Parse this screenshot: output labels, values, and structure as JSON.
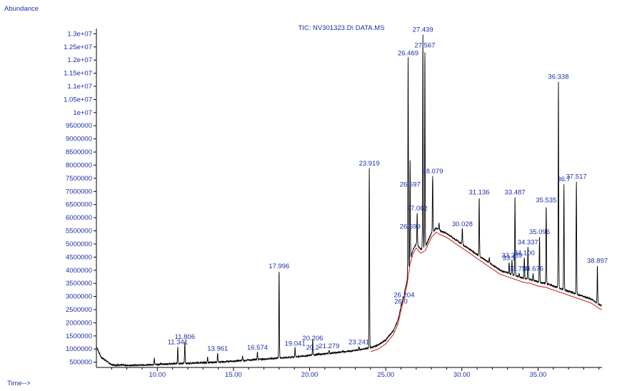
{
  "chart_data": {
    "type": "line",
    "title": "TIC: NV301323.D\\ DATA.MS",
    "ylabel": "Abundance",
    "xlabel": "Time-->",
    "xlim": [
      6.0,
      39.2
    ],
    "ylim": [
      300000,
      13200000
    ],
    "xticks": [
      10,
      15,
      20,
      25,
      30,
      35
    ],
    "xtick_labels": [
      "10.00",
      "15.00",
      "20.00",
      "25.00",
      "30.00",
      "35.00"
    ],
    "yticks": [
      500000,
      1000000,
      1500000,
      2000000,
      2500000,
      3000000,
      3500000,
      4000000,
      4500000,
      5000000,
      5500000,
      6000000,
      6500000,
      7000000,
      7500000,
      8000000,
      8500000,
      9000000,
      9500000,
      10000000,
      10500000,
      11000000,
      11500000,
      12000000,
      12500000,
      13000000
    ],
    "ytick_labels": [
      "500000",
      "1000000",
      "1500000",
      "2000000",
      "2500000",
      "3000000",
      "3500000",
      "4000000",
      "4500000",
      "5000000",
      "5500000",
      "6000000",
      "6500000",
      "7000000",
      "7500000",
      "8000000",
      "8500000",
      "9000000",
      "9500000",
      "1e+07",
      "1.05e+07",
      "1.1e+07",
      "1.15e+07",
      "1.2e+07",
      "1.25e+07",
      "1.3e+07"
    ],
    "baseline": [
      [
        6.0,
        1100000
      ],
      [
        6.3,
        700000
      ],
      [
        7.0,
        400000
      ],
      [
        8.0,
        380000
      ],
      [
        9.0,
        390000
      ],
      [
        10.0,
        420000
      ],
      [
        11.0,
        440000
      ],
      [
        12.0,
        460000
      ],
      [
        13.0,
        480000
      ],
      [
        14.0,
        500000
      ],
      [
        15.0,
        540000
      ],
      [
        16.0,
        580000
      ],
      [
        17.0,
        620000
      ],
      [
        18.0,
        660000
      ],
      [
        19.0,
        700000
      ],
      [
        20.0,
        760000
      ],
      [
        21.0,
        820000
      ],
      [
        22.0,
        880000
      ],
      [
        23.0,
        950000
      ],
      [
        24.0,
        1050000
      ],
      [
        24.5,
        1150000
      ],
      [
        25.0,
        1350000
      ],
      [
        25.5,
        1700000
      ],
      [
        25.8,
        2100000
      ],
      [
        26.0,
        2600000
      ],
      [
        26.2,
        3100000
      ],
      [
        26.4,
        3600000
      ],
      [
        26.6,
        4400000
      ],
      [
        26.8,
        4800000
      ],
      [
        27.0,
        5000000
      ],
      [
        27.3,
        4800000
      ],
      [
        27.6,
        4900000
      ],
      [
        28.0,
        5400000
      ],
      [
        28.3,
        5600000
      ],
      [
        28.6,
        5500000
      ],
      [
        29.0,
        5400000
      ],
      [
        29.5,
        5200000
      ],
      [
        30.0,
        5000000
      ],
      [
        30.5,
        4800000
      ],
      [
        31.0,
        4600000
      ],
      [
        31.5,
        4400000
      ],
      [
        32.0,
        4200000
      ],
      [
        32.5,
        4000000
      ],
      [
        33.0,
        3900000
      ],
      [
        33.5,
        3800000
      ],
      [
        34.0,
        3700000
      ],
      [
        34.5,
        3650000
      ],
      [
        35.0,
        3550000
      ],
      [
        35.5,
        3500000
      ],
      [
        36.0,
        3400000
      ],
      [
        36.5,
        3300000
      ],
      [
        37.0,
        3200000
      ],
      [
        37.5,
        3100000
      ],
      [
        38.0,
        3000000
      ],
      [
        38.5,
        2900000
      ],
      [
        39.0,
        2700000
      ],
      [
        39.2,
        2650000
      ]
    ],
    "peaks": [
      {
        "rt": 9.8,
        "height": 650000,
        "label": ""
      },
      {
        "rt": 11.341,
        "height": 1100000,
        "label": "11.341"
      },
      {
        "rt": 11.806,
        "height": 1300000,
        "label": "11.806"
      },
      {
        "rt": 13.3,
        "height": 700000,
        "label": ""
      },
      {
        "rt": 13.961,
        "height": 850000,
        "label": "13.961"
      },
      {
        "rt": 15.6,
        "height": 750000,
        "label": ""
      },
      {
        "rt": 16.574,
        "height": 900000,
        "label": "16.574"
      },
      {
        "rt": 17.996,
        "height": 4000000,
        "label": "17.996"
      },
      {
        "rt": 19.041,
        "height": 1050000,
        "label": "19.041"
      },
      {
        "rt": 20.2,
        "height": 900000,
        "label": "20.2"
      },
      {
        "rt": 20.206,
        "height": 1250000,
        "label": "20.206"
      },
      {
        "rt": 20.6,
        "height": 850000,
        "label": ""
      },
      {
        "rt": 21.279,
        "height": 950000,
        "label": "21.279"
      },
      {
        "rt": 22.2,
        "height": 950000,
        "label": ""
      },
      {
        "rt": 23.241,
        "height": 1100000,
        "label": "23.241"
      },
      {
        "rt": 23.919,
        "height": 7900000,
        "label": "23.919"
      },
      {
        "rt": 26.0,
        "height": 2650000,
        "label": "26.0"
      },
      {
        "rt": 26.204,
        "height": 2900000,
        "label": "26.204"
      },
      {
        "rt": 26.469,
        "height": 12100000,
        "label": "26.469"
      },
      {
        "rt": 26.599,
        "height": 5500000,
        "label": "26.599"
      },
      {
        "rt": 26.597,
        "height": 7100000,
        "label": "26.597"
      },
      {
        "rt": 27.062,
        "height": 6200000,
        "label": "27.062"
      },
      {
        "rt": 27.439,
        "height": 13000000,
        "label": "27.439"
      },
      {
        "rt": 27.567,
        "height": 12400000,
        "label": "27.567"
      },
      {
        "rt": 28.079,
        "height": 7600000,
        "label": "28.079"
      },
      {
        "rt": 28.5,
        "height": 5800000,
        "label": ""
      },
      {
        "rt": 30.028,
        "height": 5600000,
        "label": "30.028"
      },
      {
        "rt": 31.136,
        "height": 6800000,
        "label": "31.136"
      },
      {
        "rt": 31.8,
        "height": 4500000,
        "label": ""
      },
      {
        "rt": 33.1,
        "height": 4300000,
        "label": "33.1"
      },
      {
        "rt": 33.289,
        "height": 4400000,
        "label": "33.289"
      },
      {
        "rt": 33.487,
        "height": 6800000,
        "label": "33.487"
      },
      {
        "rt": 33.759,
        "height": 3900000,
        "label": "33.759"
      },
      {
        "rt": 34.1,
        "height": 4500000,
        "label": "34.100"
      },
      {
        "rt": 34.337,
        "height": 4900000,
        "label": "34.337"
      },
      {
        "rt": 34.676,
        "height": 3900000,
        "label": "34.676"
      },
      {
        "rt": 35.096,
        "height": 5300000,
        "label": "35.096"
      },
      {
        "rt": 35.535,
        "height": 6500000,
        "label": "35.535"
      },
      {
        "rt": 36.338,
        "height": 11200000,
        "label": "36.338"
      },
      {
        "rt": 36.7,
        "height": 7300000,
        "label": "36.7"
      },
      {
        "rt": 37.517,
        "height": 7400000,
        "label": "37.517"
      },
      {
        "rt": 38.897,
        "height": 4200000,
        "label": "38.897"
      }
    ],
    "colors": {
      "trace": "#000000",
      "baseline": "#cc0000",
      "label": "#1a2faa",
      "text": "#1a2faa"
    }
  }
}
